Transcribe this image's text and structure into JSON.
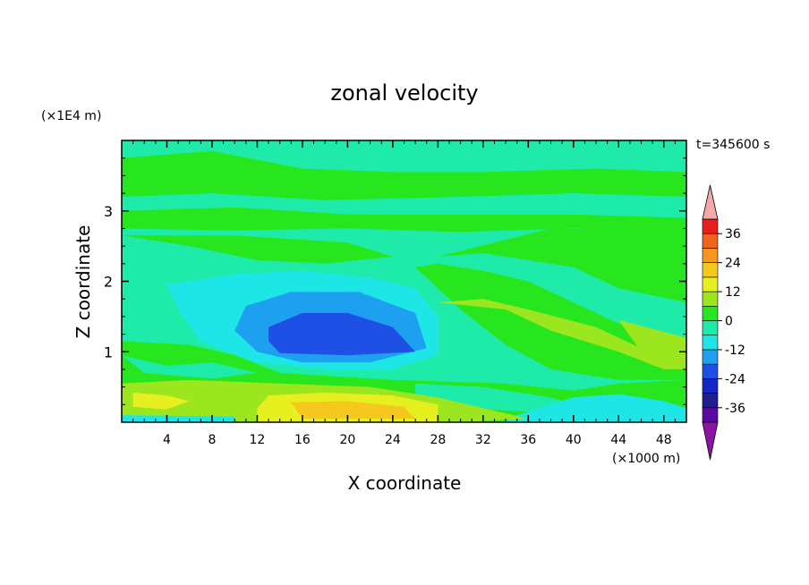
{
  "chart_data": {
    "type": "heatmap",
    "title": "zonal velocity",
    "xlabel": "X coordinate",
    "ylabel": "Z coordinate",
    "x_unit": "(×1000 m)",
    "y_unit": "(×1E4 m)",
    "time_label": "t=345600 s",
    "xlim": [
      0,
      50
    ],
    "ylim": [
      0,
      4
    ],
    "x_ticks": [
      4,
      8,
      12,
      16,
      20,
      24,
      28,
      32,
      36,
      40,
      44,
      48
    ],
    "y_ticks": [
      1,
      2,
      3
    ],
    "colorbar": {
      "levels": [
        -42,
        -36,
        -30,
        -24,
        -18,
        -12,
        -6,
        0,
        6,
        12,
        18,
        24,
        30,
        36,
        42
      ],
      "tick_labels": [
        "-36",
        "-24",
        "-12",
        "0",
        "12",
        "24",
        "36"
      ],
      "colors": [
        "#5a0aa0",
        "#1e1e8c",
        "#1428c8",
        "#1e50e6",
        "#1ea0f0",
        "#1ee6e6",
        "#1eebaa",
        "#28e61e",
        "#9be61e",
        "#e6f01e",
        "#f5c81e",
        "#f5961e",
        "#f0641e",
        "#e61e1e"
      ],
      "under_color": "#8c14a0",
      "over_color": "#f5aaaa"
    },
    "regions": [
      {
        "level": 0,
        "description": "background field near zero"
      },
      {
        "level": -6,
        "description": "broad weak westward flow"
      },
      {
        "level": -24,
        "description": "core minimum centered near x=20, z=1.2"
      },
      {
        "level": 18,
        "description": "near-surface maximum near x=20, z=0.1"
      }
    ]
  }
}
